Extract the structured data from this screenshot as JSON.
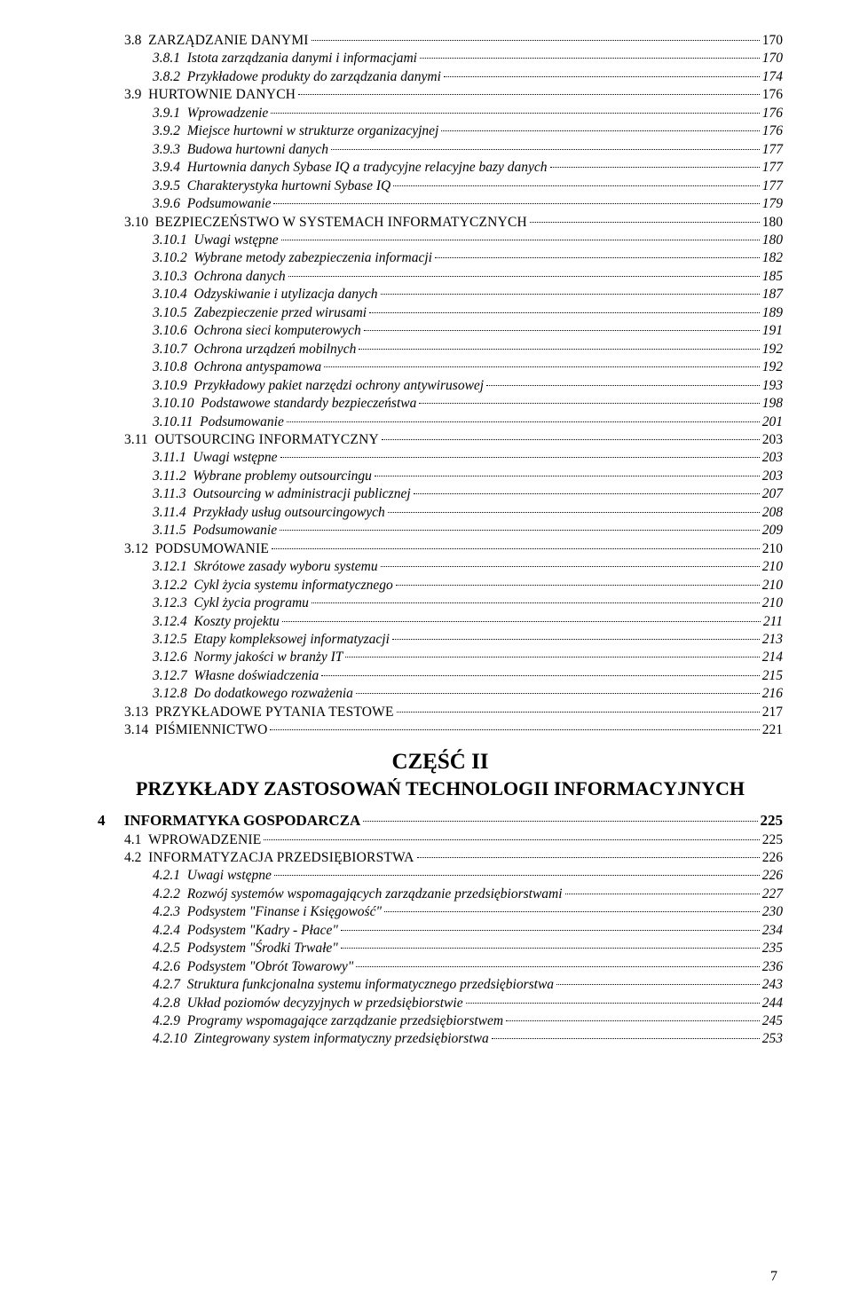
{
  "page_number": "7",
  "part": {
    "title": "CZĘŚĆ II",
    "subtitle": "PRZYKŁADY ZASTOSOWAŃ TECHNOLOGII INFORMACYJNYCH"
  },
  "entries": [
    {
      "type": "sec",
      "num": "3.8",
      "label": "ZARZĄDZANIE DANYMI",
      "page": "170",
      "smallcaps": true
    },
    {
      "type": "sub",
      "num": "3.8.1",
      "label": "Istota zarządzania danymi i informacjami",
      "page": "170"
    },
    {
      "type": "sub",
      "num": "3.8.2",
      "label": "Przykładowe produkty do zarządzania danymi",
      "page": "174"
    },
    {
      "type": "sec",
      "num": "3.9",
      "label": "HURTOWNIE DANYCH",
      "page": "176",
      "smallcaps": true
    },
    {
      "type": "sub",
      "num": "3.9.1",
      "label": "Wprowadzenie",
      "page": "176"
    },
    {
      "type": "sub",
      "num": "3.9.2",
      "label": "Miejsce hurtowni w strukturze organizacyjnej",
      "page": "176"
    },
    {
      "type": "sub",
      "num": "3.9.3",
      "label": "Budowa hurtowni danych",
      "page": "177"
    },
    {
      "type": "sub",
      "num": "3.9.4",
      "label": "Hurtownia danych Sybase IQ a tradycyjne relacyjne bazy danych",
      "page": "177"
    },
    {
      "type": "sub",
      "num": "3.9.5",
      "label": "Charakterystyka hurtowni Sybase IQ",
      "page": "177"
    },
    {
      "type": "sub",
      "num": "3.9.6",
      "label": "Podsumowanie",
      "page": "179"
    },
    {
      "type": "sec",
      "num": "3.10",
      "label": "BEZPIECZEŃSTWO W SYSTEMACH INFORMATYCZNYCH",
      "page": "180",
      "smallcaps": true
    },
    {
      "type": "sub",
      "num": "3.10.1",
      "label": "Uwagi wstępne",
      "page": "180"
    },
    {
      "type": "sub",
      "num": "3.10.2",
      "label": "Wybrane metody zabezpieczenia informacji",
      "page": "182"
    },
    {
      "type": "sub",
      "num": "3.10.3",
      "label": "Ochrona danych",
      "page": "185"
    },
    {
      "type": "sub",
      "num": "3.10.4",
      "label": "Odzyskiwanie i utylizacja danych",
      "page": "187"
    },
    {
      "type": "sub",
      "num": "3.10.5",
      "label": "Zabezpieczenie przed wirusami",
      "page": "189"
    },
    {
      "type": "sub",
      "num": "3.10.6",
      "label": "Ochrona sieci komputerowych",
      "page": "191"
    },
    {
      "type": "sub",
      "num": "3.10.7",
      "label": "Ochrona urządzeń mobilnych",
      "page": "192"
    },
    {
      "type": "sub",
      "num": "3.10.8",
      "label": "Ochrona antyspamowa",
      "page": "192"
    },
    {
      "type": "sub",
      "num": "3.10.9",
      "label": "Przykładowy pakiet narzędzi ochrony antywirusowej",
      "page": "193"
    },
    {
      "type": "sub",
      "num": "3.10.10",
      "label": "Podstawowe standardy bezpieczeństwa",
      "page": "198"
    },
    {
      "type": "sub",
      "num": "3.10.11",
      "label": "Podsumowanie",
      "page": "201"
    },
    {
      "type": "sec",
      "num": "3.11",
      "label": "OUTSOURCING INFORMATYCZNY",
      "page": "203",
      "smallcaps": true
    },
    {
      "type": "sub",
      "num": "3.11.1",
      "label": "Uwagi wstępne",
      "page": "203"
    },
    {
      "type": "sub",
      "num": "3.11.2",
      "label": "Wybrane problemy outsourcingu",
      "page": "203"
    },
    {
      "type": "sub",
      "num": "3.11.3",
      "label": "Outsourcing w administracji publicznej",
      "page": "207"
    },
    {
      "type": "sub",
      "num": "3.11.4",
      "label": "Przykłady usług outsourcingowych",
      "page": "208"
    },
    {
      "type": "sub",
      "num": "3.11.5",
      "label": "Podsumowanie",
      "page": "209"
    },
    {
      "type": "sec",
      "num": "3.12",
      "label": "PODSUMOWANIE",
      "page": "210",
      "smallcaps": true
    },
    {
      "type": "sub",
      "num": "3.12.1",
      "label": "Skrótowe zasady wyboru systemu",
      "page": "210"
    },
    {
      "type": "sub",
      "num": "3.12.2",
      "label": "Cykl życia systemu informatycznego",
      "page": "210"
    },
    {
      "type": "sub",
      "num": "3.12.3",
      "label": "Cykl życia programu",
      "page": "210"
    },
    {
      "type": "sub",
      "num": "3.12.4",
      "label": "Koszty projektu",
      "page": "211"
    },
    {
      "type": "sub",
      "num": "3.12.5",
      "label": "Etapy kompleksowej informatyzacji",
      "page": "213"
    },
    {
      "type": "sub",
      "num": "3.12.6",
      "label": "Normy jakości w branży IT",
      "page": "214"
    },
    {
      "type": "sub",
      "num": "3.12.7",
      "label": "Własne doświadczenia",
      "page": "215"
    },
    {
      "type": "sub",
      "num": "3.12.8",
      "label": "Do dodatkowego rozważenia",
      "page": "216"
    },
    {
      "type": "sec",
      "num": "3.13",
      "label": "PRZYKŁADOWE PYTANIA TESTOWE",
      "page": "217",
      "smallcaps": true
    },
    {
      "type": "sec",
      "num": "3.14",
      "label": "PIŚMIENNICTWO",
      "page": "221",
      "smallcaps": true
    },
    {
      "type": "part"
    },
    {
      "type": "chapter",
      "num": "4",
      "label": "INFORMATYKA GOSPODARCZA",
      "page": "225"
    },
    {
      "type": "sec",
      "num": "4.1",
      "label": "WPROWADZENIE",
      "page": "225",
      "smallcaps": true
    },
    {
      "type": "sec",
      "num": "4.2",
      "label": "INFORMATYZACJA PRZEDSIĘBIORSTWA",
      "page": "226",
      "smallcaps": true
    },
    {
      "type": "sub",
      "num": "4.2.1",
      "label": "Uwagi wstępne",
      "page": "226"
    },
    {
      "type": "sub",
      "num": "4.2.2",
      "label": "Rozwój systemów wspomagających zarządzanie przedsiębiorstwami",
      "page": "227"
    },
    {
      "type": "sub",
      "num": "4.2.3",
      "label": "Podsystem \"Finanse i Księgowość\"",
      "page": "230"
    },
    {
      "type": "sub",
      "num": "4.2.4",
      "label": "Podsystem \"Kadry - Płace\"",
      "page": "234"
    },
    {
      "type": "sub",
      "num": "4.2.5",
      "label": "Podsystem \"Środki Trwałe\"",
      "page": "235"
    },
    {
      "type": "sub",
      "num": "4.2.6",
      "label": "Podsystem \"Obrót Towarowy\"",
      "page": "236"
    },
    {
      "type": "sub",
      "num": "4.2.7",
      "label": "Struktura funkcjonalna systemu informatycznego przedsiębiorstwa",
      "page": "243"
    },
    {
      "type": "sub",
      "num": "4.2.8",
      "label": "Układ poziomów decyzyjnych w przedsiębiorstwie",
      "page": "244"
    },
    {
      "type": "sub",
      "num": "4.2.9",
      "label": "Programy wspomagające zarządzanie przedsiębiorstwem",
      "page": "245"
    },
    {
      "type": "sub",
      "num": "4.2.10",
      "label": "Zintegrowany system informatyczny przedsiębiorstwa",
      "page": "253"
    }
  ]
}
